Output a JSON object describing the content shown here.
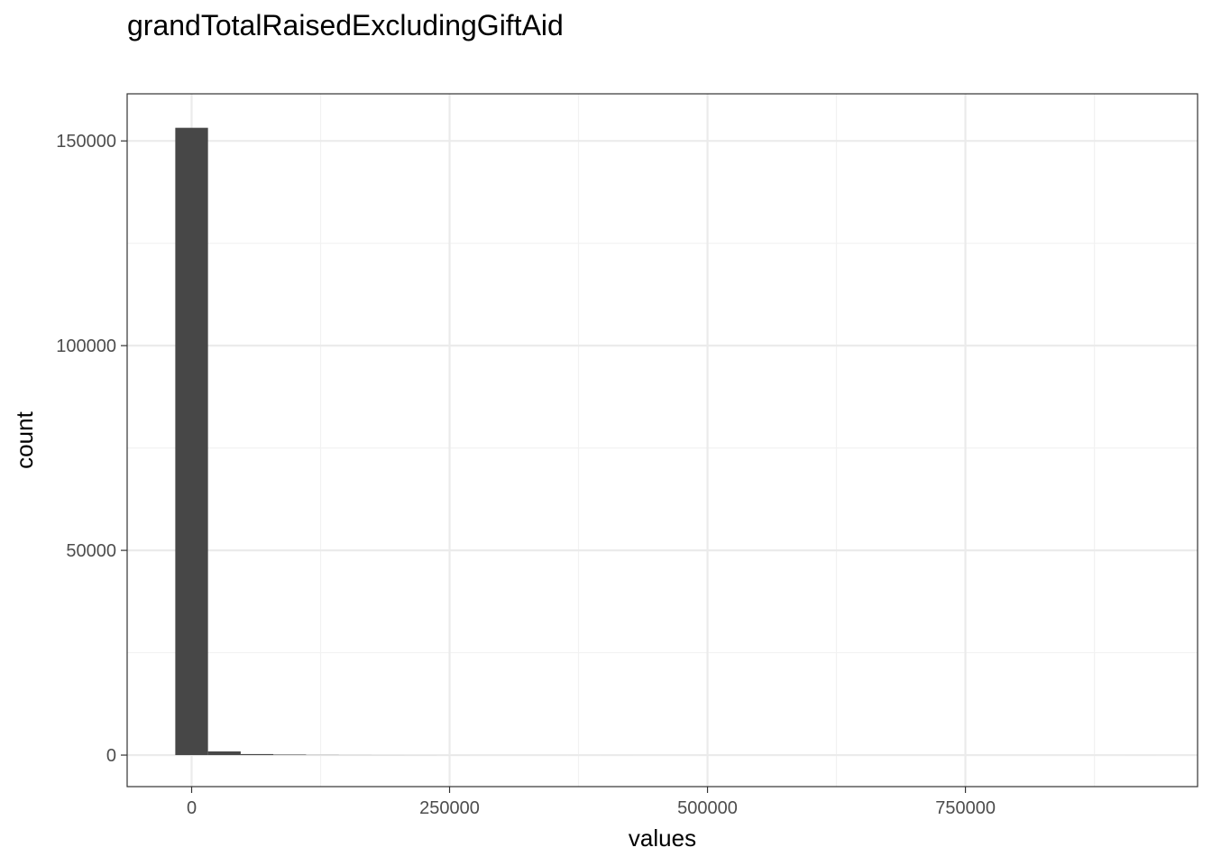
{
  "chart_data": {
    "type": "bar",
    "title": "grandTotalRaisedExcludingGiftAid",
    "xlabel": "values",
    "ylabel": "count",
    "xlim": [
      -62500,
      975000
    ],
    "ylim": [
      -7700,
      161500
    ],
    "x_ticks": [
      0,
      250000,
      500000,
      750000
    ],
    "x_tick_labels": [
      "0",
      "250000",
      "500000",
      "750000"
    ],
    "y_ticks": [
      0,
      50000,
      100000,
      150000
    ],
    "y_tick_labels": [
      "0",
      "50000",
      "100000",
      "150000"
    ],
    "grid": true,
    "bin_width": 31700,
    "bins": [
      {
        "x_start": -15850,
        "x_end": 15850,
        "count": 153200
      },
      {
        "x_start": 15850,
        "x_end": 47550,
        "count": 900
      },
      {
        "x_start": 47550,
        "x_end": 79250,
        "count": 250
      },
      {
        "x_start": 79250,
        "x_end": 110950,
        "count": 120
      },
      {
        "x_start": 110950,
        "x_end": 142650,
        "count": 40
      },
      {
        "x_start": 142650,
        "x_end": 174350,
        "count": 20
      },
      {
        "x_start": 174350,
        "x_end": 206050,
        "count": 12
      },
      {
        "x_start": 206050,
        "x_end": 237750,
        "count": 8
      },
      {
        "x_start": 237750,
        "x_end": 269450,
        "count": 4
      },
      {
        "x_start": 269450,
        "x_end": 301150,
        "count": 2
      },
      {
        "x_start": 301150,
        "x_end": 332850,
        "count": 2
      },
      {
        "x_start": 332850,
        "x_end": 364550,
        "count": 1
      },
      {
        "x_start": 364550,
        "x_end": 396250,
        "count": 1
      },
      {
        "x_start": 396250,
        "x_end": 427950,
        "count": 1
      },
      {
        "x_start": 427950,
        "x_end": 459650,
        "count": 0
      },
      {
        "x_start": 459650,
        "x_end": 491350,
        "count": 0
      },
      {
        "x_start": 491350,
        "x_end": 523050,
        "count": 1
      },
      {
        "x_start": 523050,
        "x_end": 554750,
        "count": 0
      },
      {
        "x_start": 554750,
        "x_end": 586450,
        "count": 0
      },
      {
        "x_start": 586450,
        "x_end": 618150,
        "count": 0
      },
      {
        "x_start": 618150,
        "x_end": 649850,
        "count": 0
      },
      {
        "x_start": 649850,
        "x_end": 681550,
        "count": 0
      },
      {
        "x_start": 681550,
        "x_end": 713250,
        "count": 0
      },
      {
        "x_start": 713250,
        "x_end": 744950,
        "count": 0
      },
      {
        "x_start": 744950,
        "x_end": 776650,
        "count": 0
      },
      {
        "x_start": 776650,
        "x_end": 808350,
        "count": 0
      },
      {
        "x_start": 808350,
        "x_end": 840050,
        "count": 0
      },
      {
        "x_start": 840050,
        "x_end": 871750,
        "count": 0
      },
      {
        "x_start": 871750,
        "x_end": 903450,
        "count": 0
      },
      {
        "x_start": 903450,
        "x_end": 935150,
        "count": 1
      }
    ],
    "colors": {
      "bar": "#474747",
      "panel_border": "#333333",
      "grid_major": "#ebebeb",
      "grid_minor": "#f2f2f2",
      "tick_label": "#4d4d4d"
    }
  }
}
